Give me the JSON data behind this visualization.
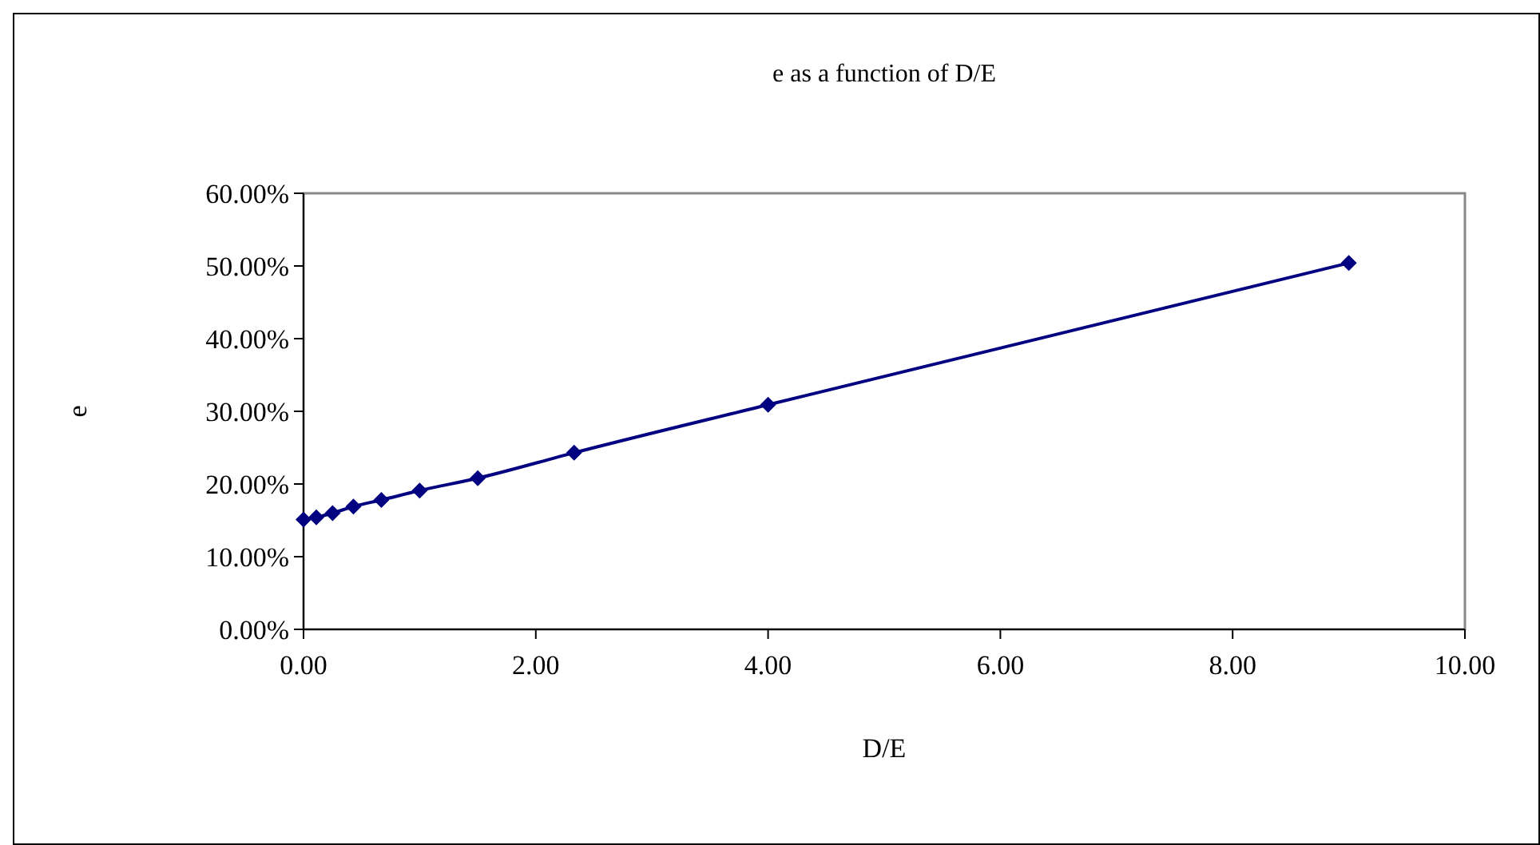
{
  "chart_data": {
    "type": "line",
    "title": "e as a function of D/E",
    "xlabel": "D/E",
    "ylabel": "e",
    "x": [
      0,
      0.11,
      0.25,
      0.43,
      0.67,
      1,
      1.5,
      2.33,
      4,
      9
    ],
    "series": [
      {
        "color": "#000080",
        "values": [
          0.151,
          0.154,
          0.16,
          0.169,
          0.178,
          0.191,
          0.208,
          0.243,
          0.309,
          0.504
        ]
      }
    ],
    "xlim": [
      0,
      10
    ],
    "xticks": [
      {
        "value": 0,
        "label": "0.00"
      },
      {
        "value": 2,
        "label": "2.00"
      },
      {
        "value": 4,
        "label": "4.00"
      },
      {
        "value": 6,
        "label": "6.00"
      },
      {
        "value": 8,
        "label": "8.00"
      },
      {
        "value": 10,
        "label": "10.00"
      }
    ],
    "ylim": [
      0,
      0.6
    ],
    "yticks": [
      {
        "value": 0,
        "label": "0.00%"
      },
      {
        "value": 0.1,
        "label": "10.00%"
      },
      {
        "value": 0.2,
        "label": "20.00%"
      },
      {
        "value": 0.3,
        "label": "30.00%"
      },
      {
        "value": 0.4,
        "label": "40.00%"
      },
      {
        "value": 0.5,
        "label": "50.00%"
      },
      {
        "value": 0.6,
        "label": "60.00%"
      }
    ],
    "marker": "diamond",
    "line_style": "solid"
  }
}
